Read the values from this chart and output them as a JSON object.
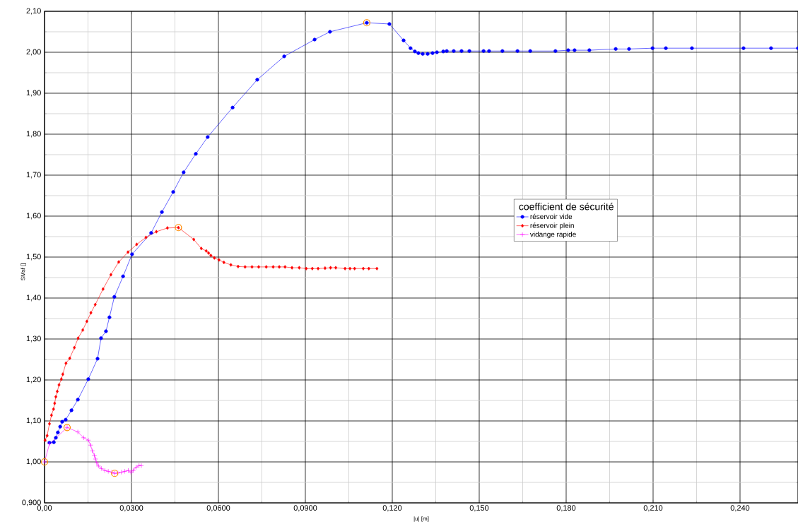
{
  "chart_data": {
    "type": "line",
    "xlabel": "|u| [m]",
    "ylabel": "SMsf []",
    "legend_title": "coefficient de sécurité",
    "xlim": [
      0,
      0.26
    ],
    "ylim": [
      0.9,
      2.1
    ],
    "xticks": [
      {
        "value": 0,
        "label": "0,00"
      },
      {
        "value": 0.03,
        "label": "0,0300"
      },
      {
        "value": 0.06,
        "label": "0,0600"
      },
      {
        "value": 0.09,
        "label": "0,0900"
      },
      {
        "value": 0.12,
        "label": "0,120"
      },
      {
        "value": 0.15,
        "label": "0,150"
      },
      {
        "value": 0.18,
        "label": "0,180"
      },
      {
        "value": 0.21,
        "label": "0,210"
      },
      {
        "value": 0.24,
        "label": "0,240"
      }
    ],
    "yticks": [
      {
        "value": 0.9,
        "label": "0,900"
      },
      {
        "value": 1.0,
        "label": "1,00"
      },
      {
        "value": 1.1,
        "label": "1,10"
      },
      {
        "value": 1.2,
        "label": "1,20"
      },
      {
        "value": 1.3,
        "label": "1,30"
      },
      {
        "value": 1.4,
        "label": "1,40"
      },
      {
        "value": 1.5,
        "label": "1,50"
      },
      {
        "value": 1.6,
        "label": "1,60"
      },
      {
        "value": 1.7,
        "label": "1,70"
      },
      {
        "value": 1.8,
        "label": "1,80"
      },
      {
        "value": 1.9,
        "label": "1,90"
      },
      {
        "value": 2.0,
        "label": "2,00"
      },
      {
        "value": 2.1,
        "label": "2,10"
      }
    ],
    "grid": true,
    "legend": "right",
    "series": [
      {
        "name": "réservoir vide",
        "color": "#0000ff",
        "marker": "circle",
        "x": [
          0.0017,
          0.0032,
          0.0039,
          0.0046,
          0.0054,
          0.0061,
          0.0073,
          0.0093,
          0.0115,
          0.0151,
          0.0183,
          0.0195,
          0.0212,
          0.0224,
          0.0241,
          0.0271,
          0.0302,
          0.0368,
          0.0405,
          0.0444,
          0.048,
          0.0522,
          0.0563,
          0.0649,
          0.0734,
          0.0827,
          0.0932,
          0.0985,
          0.1112,
          0.119,
          0.1239,
          0.1263,
          0.1278,
          0.129,
          0.1305,
          0.1322,
          0.1339,
          0.1354,
          0.1376,
          0.1388,
          0.1412,
          0.1439,
          0.1466,
          0.1515,
          0.1534,
          0.158,
          0.1632,
          0.1676,
          0.1763,
          0.1807,
          0.1829,
          0.188,
          0.1971,
          0.2017,
          0.2098,
          0.2144,
          0.2234,
          0.2412,
          0.2507,
          0.26
        ],
        "values": [
          1.047,
          1.048,
          1.059,
          1.072,
          1.086,
          1.098,
          1.103,
          1.126,
          1.152,
          1.202,
          1.252,
          1.302,
          1.319,
          1.353,
          1.403,
          1.453,
          1.507,
          1.559,
          1.61,
          1.659,
          1.707,
          1.752,
          1.793,
          1.865,
          1.933,
          1.99,
          2.031,
          2.05,
          2.072,
          2.069,
          2.029,
          2.01,
          2.002,
          1.998,
          1.996,
          1.996,
          1.998,
          2.0,
          2.002,
          2.003,
          2.003,
          2.003,
          2.003,
          2.003,
          2.003,
          2.003,
          2.003,
          2.003,
          2.003,
          2.005,
          2.005,
          2.005,
          2.008,
          2.008,
          2.01,
          2.01,
          2.01,
          2.01,
          2.01,
          2.01
        ]
      },
      {
        "name": "réservoir plein",
        "color": "#ff0000",
        "marker": "diamond",
        "x": [
          0.0002,
          0.0009,
          0.0017,
          0.0024,
          0.0031,
          0.0035,
          0.0039,
          0.0044,
          0.005,
          0.0058,
          0.0063,
          0.0074,
          0.0087,
          0.0103,
          0.0116,
          0.0132,
          0.0146,
          0.016,
          0.0175,
          0.0202,
          0.0229,
          0.0256,
          0.0288,
          0.0318,
          0.035,
          0.0386,
          0.0424,
          0.0462,
          0.0515,
          0.0541,
          0.0558,
          0.0566,
          0.0574,
          0.0586,
          0.0602,
          0.0619,
          0.0643,
          0.0668,
          0.0692,
          0.0716,
          0.0739,
          0.0765,
          0.0789,
          0.081,
          0.083,
          0.0854,
          0.0879,
          0.0903,
          0.0924,
          0.0944,
          0.0968,
          0.0987,
          0.1005,
          0.1037,
          0.1054,
          0.107,
          0.11,
          0.1119,
          0.1147
        ],
        "values": [
          1.053,
          1.064,
          1.093,
          1.114,
          1.129,
          1.143,
          1.159,
          1.172,
          1.188,
          1.202,
          1.214,
          1.241,
          1.253,
          1.279,
          1.302,
          1.322,
          1.343,
          1.364,
          1.384,
          1.422,
          1.457,
          1.488,
          1.512,
          1.531,
          1.548,
          1.562,
          1.571,
          1.572,
          1.543,
          1.521,
          1.515,
          1.51,
          1.504,
          1.498,
          1.493,
          1.487,
          1.481,
          1.477,
          1.476,
          1.476,
          1.476,
          1.476,
          1.476,
          1.476,
          1.476,
          1.474,
          1.474,
          1.472,
          1.472,
          1.472,
          1.473,
          1.474,
          1.474,
          1.472,
          1.472,
          1.472,
          1.472,
          1.472,
          1.472
        ]
      },
      {
        "name": "vidange rapide",
        "color": "#ff00ff",
        "marker": "cross",
        "x": [
          0.0,
          0.0017,
          0.0078,
          0.0115,
          0.0135,
          0.0151,
          0.0159,
          0.0165,
          0.0172,
          0.0176,
          0.018,
          0.0186,
          0.0196,
          0.0208,
          0.022,
          0.0232,
          0.0242,
          0.0253,
          0.0265,
          0.0277,
          0.0289,
          0.0298,
          0.0306,
          0.0316,
          0.0326,
          0.0334
        ],
        "values": [
          1.0,
          1.044,
          1.084,
          1.073,
          1.059,
          1.053,
          1.041,
          1.027,
          1.016,
          1.007,
          0.998,
          0.99,
          0.984,
          0.979,
          0.977,
          0.975,
          0.972,
          0.973,
          0.975,
          0.977,
          0.979,
          0.975,
          0.979,
          0.987,
          0.991,
          0.991
        ]
      },
      {
        "type": "scatter",
        "color": "#ff8c00",
        "marker": "circle",
        "x": [
          0.0,
          0.0078,
          0.0242,
          0.0462,
          0.1112
        ],
        "values": [
          1.0,
          1.084,
          0.972,
          1.572,
          2.072
        ]
      }
    ]
  }
}
